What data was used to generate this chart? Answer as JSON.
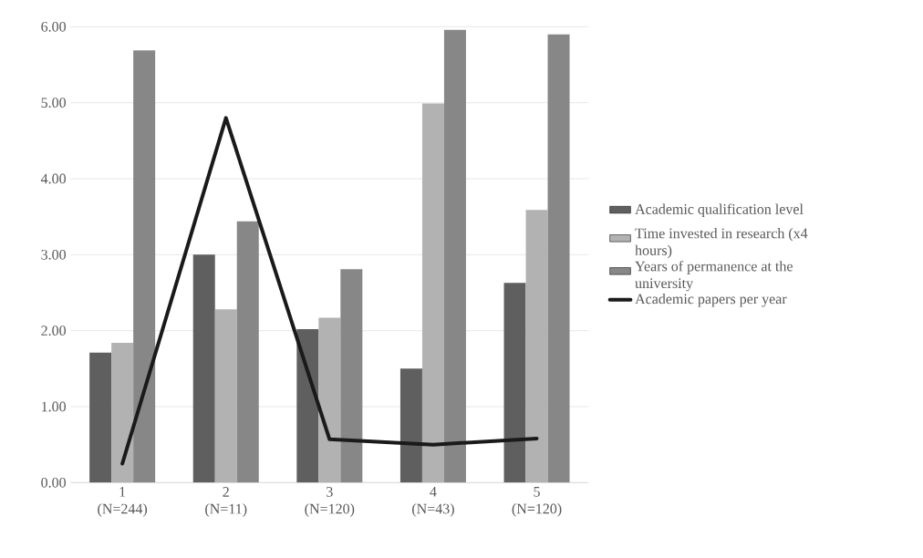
{
  "chart_data": {
    "type": "bar",
    "categories": [
      "1 (N=244)",
      "2 (N=11)",
      "3 (N=120)",
      "4 (N=43)",
      "5 (N=120)"
    ],
    "series": [
      {
        "name": "Academic qualification level",
        "color": "#5f5f5f",
        "values": [
          1.71,
          3.0,
          2.02,
          1.5,
          2.63
        ]
      },
      {
        "name": "Time invested in research (x4 hours)",
        "color": "#b2b2b2",
        "values": [
          1.84,
          2.28,
          2.17,
          4.99,
          3.59
        ]
      },
      {
        "name": "Years of permanence at the university",
        "color": "#878787",
        "values": [
          5.69,
          3.44,
          2.81,
          5.96,
          5.9
        ]
      },
      {
        "name": "Academic papers per year",
        "type": "line",
        "color": "#1a1a1a",
        "values": [
          0.25,
          4.8,
          0.57,
          0.5,
          0.58
        ]
      }
    ],
    "ylim": [
      0,
      6
    ],
    "yticks": [
      {
        "value": 0,
        "label": "0.00"
      },
      {
        "value": 1,
        "label": "1.00"
      },
      {
        "value": 2,
        "label": "2.00"
      },
      {
        "value": 3,
        "label": "3.00"
      },
      {
        "value": 4,
        "label": "4.00"
      },
      {
        "value": 5,
        "label": "5.00"
      },
      {
        "value": 6,
        "label": "6.00"
      }
    ],
    "grid": "y",
    "legend": "right",
    "marker": "none"
  }
}
